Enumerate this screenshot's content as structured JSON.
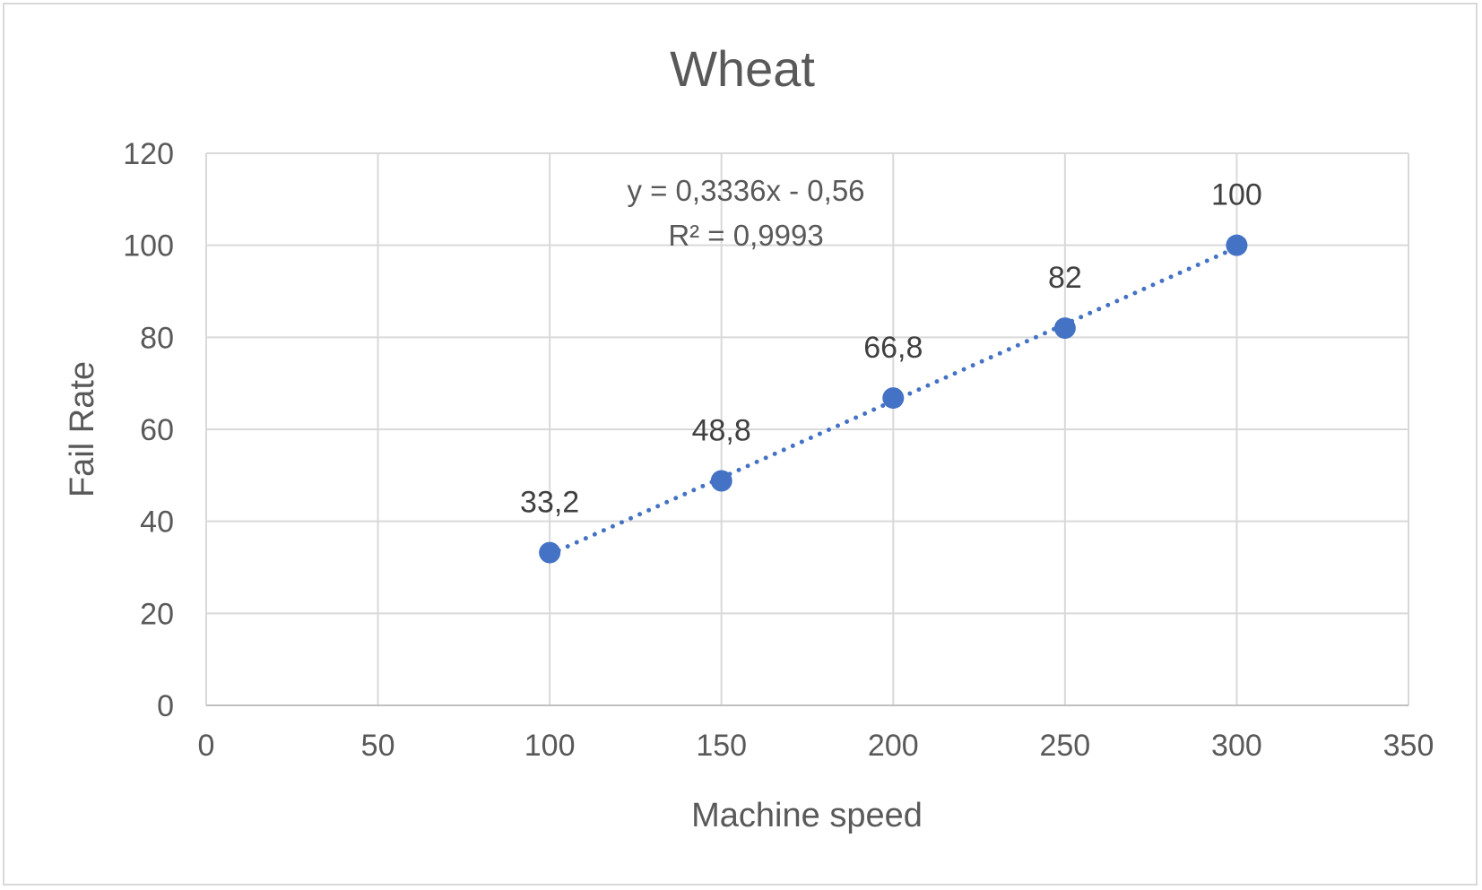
{
  "chart_data": {
    "type": "scatter",
    "title": "Wheat",
    "xlabel": "Machine speed",
    "ylabel": "Fail Rate",
    "xlim": [
      0,
      350
    ],
    "ylim": [
      0,
      120
    ],
    "x_ticks": [
      0,
      50,
      100,
      150,
      200,
      250,
      300,
      350
    ],
    "y_ticks": [
      0,
      20,
      40,
      60,
      80,
      100,
      120
    ],
    "x_tick_labels": [
      "0",
      "50",
      "100",
      "150",
      "200",
      "250",
      "300",
      "350"
    ],
    "y_tick_labels": [
      "0",
      "20",
      "40",
      "60",
      "80",
      "100",
      "120"
    ],
    "grid": true,
    "legend": "none",
    "series": [
      {
        "x": [
          100,
          150,
          200,
          250,
          300
        ],
        "y": [
          33.2,
          48.8,
          66.8,
          82,
          100
        ],
        "data_labels": [
          "33,2",
          "48,8",
          "66,8",
          "82",
          "100"
        ],
        "color": "#4472c4"
      }
    ],
    "trendline": {
      "type": "linear",
      "slope": 0.3336,
      "intercept": -0.56,
      "x_range": [
        100,
        300
      ],
      "style": "dotted",
      "color": "#4472c4",
      "equation_label": "y = 0,3336x - 0,56",
      "r2_label": "R² = 0,9993"
    },
    "colors": {
      "grid": "#d9d9d9",
      "text": "#595959"
    }
  }
}
